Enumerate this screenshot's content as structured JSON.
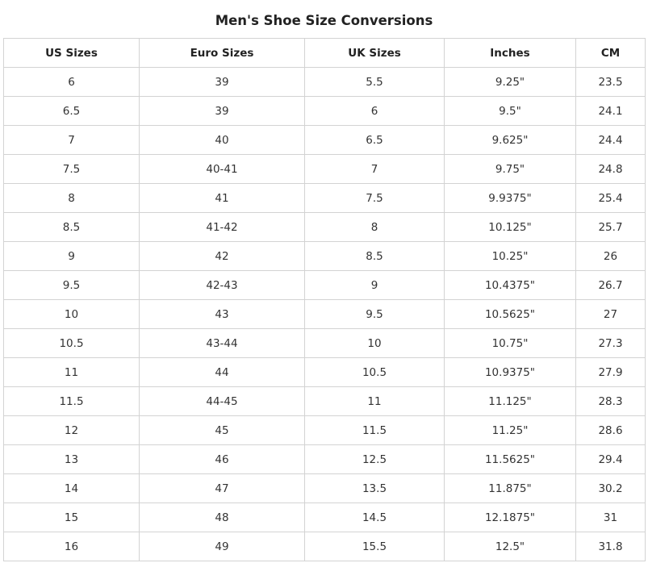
{
  "title": "Men's Shoe Size Conversions",
  "table": {
    "headers": [
      "US Sizes",
      "Euro Sizes",
      "UK Sizes",
      "Inches",
      "CM"
    ],
    "rows": [
      [
        "6",
        "39",
        "5.5",
        "9.25\"",
        "23.5"
      ],
      [
        "6.5",
        "39",
        "6",
        "9.5\"",
        "24.1"
      ],
      [
        "7",
        "40",
        "6.5",
        "9.625\"",
        "24.4"
      ],
      [
        "7.5",
        "40-41",
        "7",
        "9.75\"",
        "24.8"
      ],
      [
        "8",
        "41",
        "7.5",
        "9.9375\"",
        "25.4"
      ],
      [
        "8.5",
        "41-42",
        "8",
        "10.125\"",
        "25.7"
      ],
      [
        "9",
        "42",
        "8.5",
        "10.25\"",
        "26"
      ],
      [
        "9.5",
        "42-43",
        "9",
        "10.4375\"",
        "26.7"
      ],
      [
        "10",
        "43",
        "9.5",
        "10.5625\"",
        "27"
      ],
      [
        "10.5",
        "43-44",
        "10",
        "10.75\"",
        "27.3"
      ],
      [
        "11",
        "44",
        "10.5",
        "10.9375\"",
        "27.9"
      ],
      [
        "11.5",
        "44-45",
        "11",
        "11.125\"",
        "28.3"
      ],
      [
        "12",
        "45",
        "11.5",
        "11.25\"",
        "28.6"
      ],
      [
        "13",
        "46",
        "12.5",
        "11.5625\"",
        "29.4"
      ],
      [
        "14",
        "47",
        "13.5",
        "11.875\"",
        "30.2"
      ],
      [
        "15",
        "48",
        "14.5",
        "12.1875\"",
        "31"
      ],
      [
        "16",
        "49",
        "15.5",
        "12.5\"",
        "31.8"
      ]
    ]
  }
}
